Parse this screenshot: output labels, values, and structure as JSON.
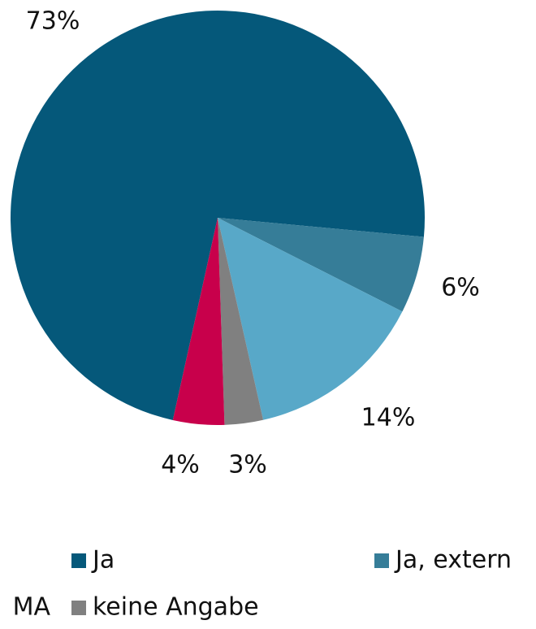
{
  "chart_data": {
    "type": "pie",
    "categories": [
      "Ja",
      "Ja, extern",
      "MA",
      "keine Angabe",
      null
    ],
    "values": [
      73,
      6,
      14,
      3,
      4
    ],
    "value_labels": [
      "73%",
      "6%",
      "14%",
      "3%",
      "4%"
    ],
    "colors": [
      "#05587a",
      "#367d98",
      "#58a8c8",
      "#808080",
      "#c8004b"
    ]
  }
}
